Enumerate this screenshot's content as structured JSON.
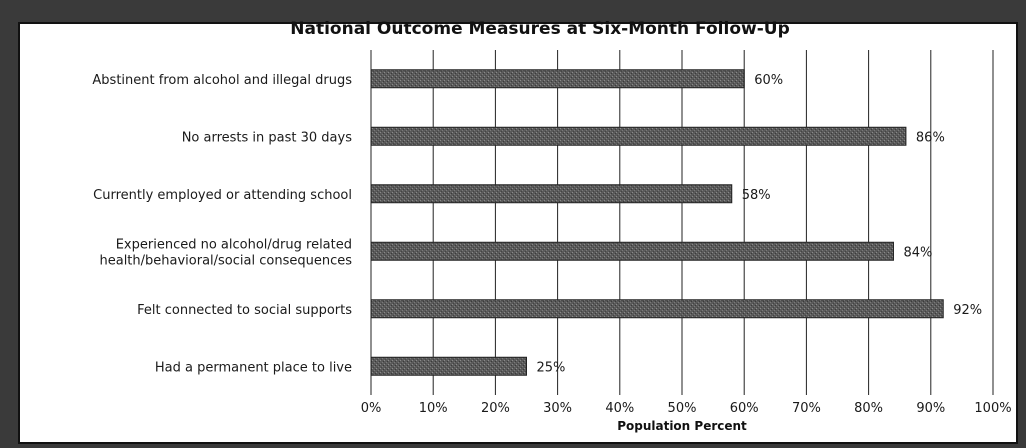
{
  "chart_data": {
    "type": "bar",
    "orientation": "horizontal",
    "title": "National Outcome Measures at Six-Month Follow-Up",
    "xlabel": "Population Percent",
    "ylabel": "",
    "xlim": [
      0,
      100
    ],
    "grid": true,
    "categories": [
      [
        "Abstinent from alcohol and illegal drugs"
      ],
      [
        "No arrests in past 30 days"
      ],
      [
        "Currently employed or attending school"
      ],
      [
        "Experienced no alcohol/drug related",
        "health/behavioral/social consequences"
      ],
      [
        "Felt connected to social supports"
      ],
      [
        "Had a permanent place to live"
      ]
    ],
    "values": [
      60,
      86,
      58,
      84,
      92,
      25
    ],
    "data_labels": [
      "60%",
      "86%",
      "58%",
      "84%",
      "92%",
      "25%"
    ],
    "ticks": [
      "0%",
      "10%",
      "20%",
      "30%",
      "40%",
      "50%",
      "60%",
      "70%",
      "80%",
      "90%",
      "100%"
    ],
    "bar_color": "#555555"
  }
}
